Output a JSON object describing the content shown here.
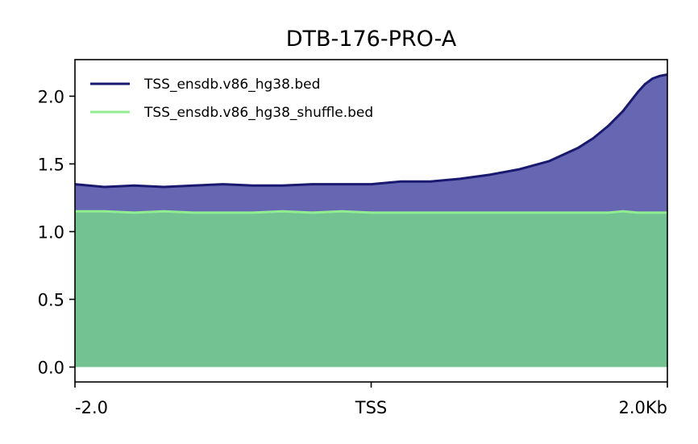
{
  "chart_data": {
    "type": "area",
    "title": "DTB-176-PRO-A",
    "xlabel": "",
    "ylabel": "",
    "xlim": [
      -2.0,
      2.0
    ],
    "ylim": [
      -0.11,
      2.27
    ],
    "x_ticks": [
      {
        "value": -2.0,
        "label": "-2.0"
      },
      {
        "value": 0.0,
        "label": "TSS"
      },
      {
        "value": 2.0,
        "label": "2.0Kb"
      }
    ],
    "y_ticks": [
      {
        "value": 0.0,
        "label": "0.0"
      },
      {
        "value": 0.5,
        "label": "0.5"
      },
      {
        "value": 1.0,
        "label": "1.0"
      },
      {
        "value": 1.5,
        "label": "1.5"
      },
      {
        "value": 2.0,
        "label": "2.0"
      }
    ],
    "grid": false,
    "legend_position": "top-left",
    "x": [
      -2.0,
      -1.8,
      -1.6,
      -1.4,
      -1.2,
      -1.0,
      -0.8,
      -0.6,
      -0.4,
      -0.2,
      0.0,
      0.2,
      0.4,
      0.6,
      0.8,
      1.0,
      1.2,
      1.4,
      1.5,
      1.6,
      1.7,
      1.8,
      1.85,
      1.9,
      1.95,
      2.0
    ],
    "series": [
      {
        "name": "TSS_ensdb.v86_hg38.bed",
        "line_color": "#191970",
        "fill_color": "#6666b3",
        "values": [
          1.35,
          1.33,
          1.34,
          1.33,
          1.34,
          1.35,
          1.34,
          1.34,
          1.35,
          1.35,
          1.35,
          1.37,
          1.37,
          1.39,
          1.42,
          1.46,
          1.52,
          1.62,
          1.69,
          1.78,
          1.89,
          2.03,
          2.09,
          2.13,
          2.15,
          2.16
        ]
      },
      {
        "name": "TSS_ensdb.v86_hg38_shuffle.bed",
        "line_color": "#90ee90",
        "fill_color": "#73c392",
        "values": [
          1.15,
          1.15,
          1.14,
          1.15,
          1.14,
          1.14,
          1.14,
          1.15,
          1.14,
          1.15,
          1.14,
          1.14,
          1.14,
          1.14,
          1.14,
          1.14,
          1.14,
          1.14,
          1.14,
          1.14,
          1.15,
          1.14,
          1.14,
          1.14,
          1.14,
          1.14
        ]
      }
    ]
  }
}
